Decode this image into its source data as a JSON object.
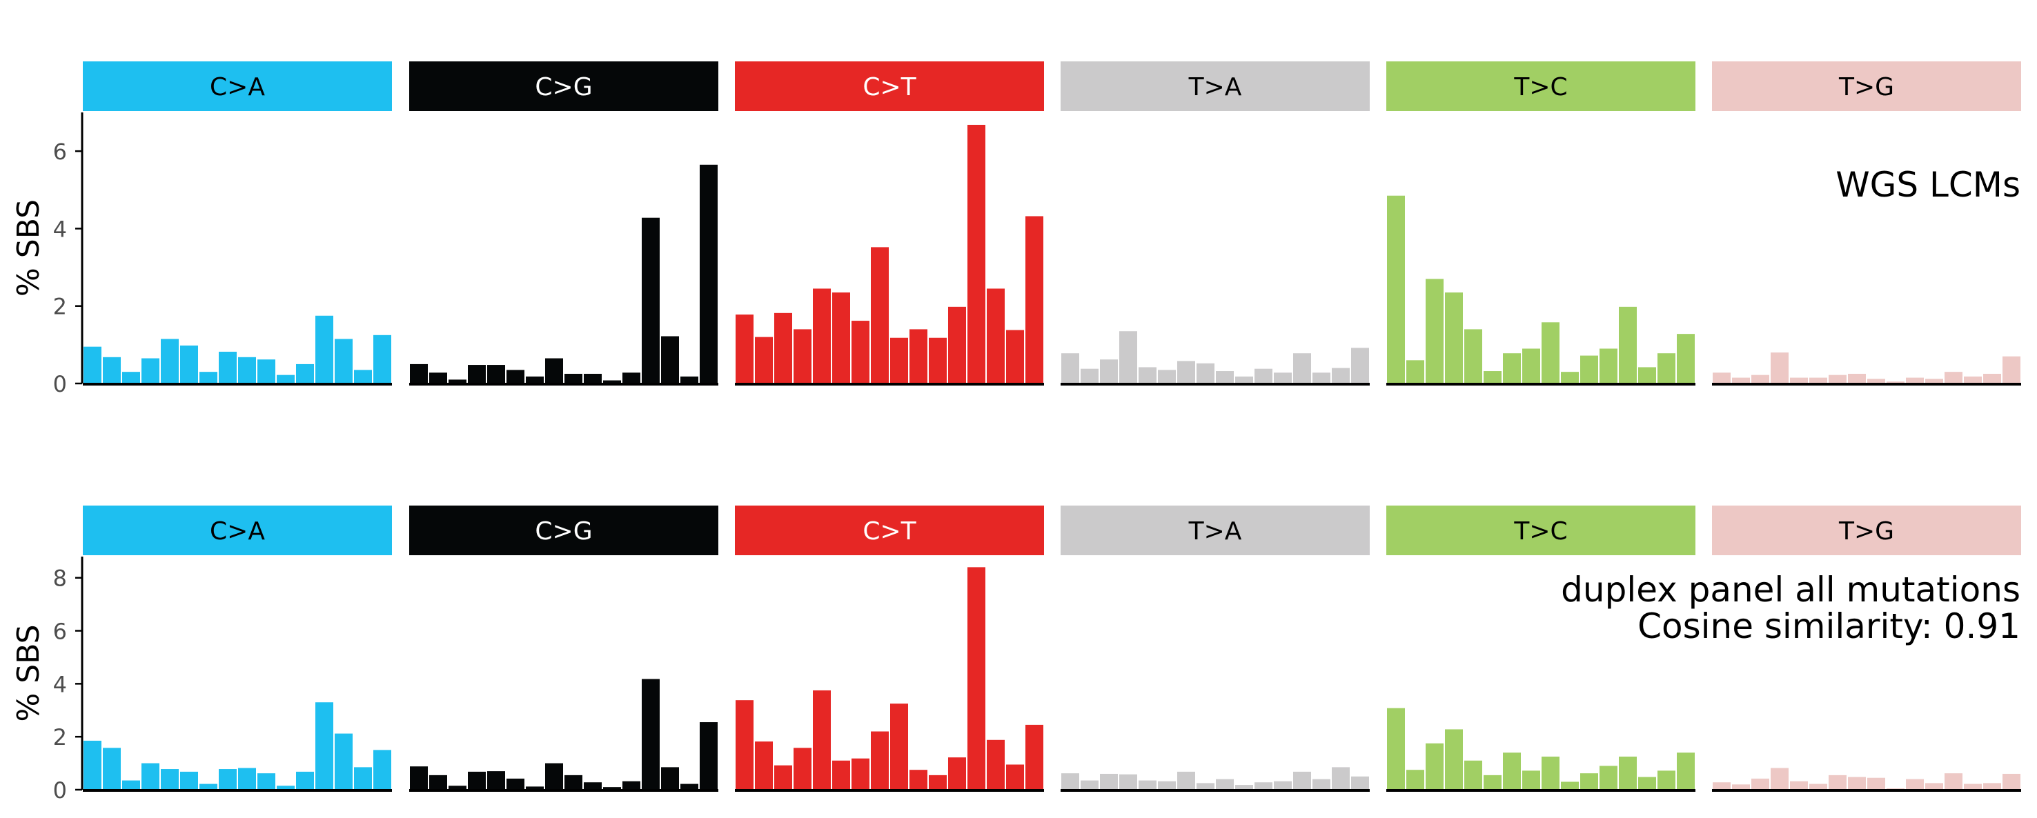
{
  "colors": {
    "C>A": "#1EBFF0",
    "C>G": "#050708",
    "C>T": "#E62725",
    "T>A": "#CBCACB",
    "T>C": "#A1CF64",
    "T>G": "#EDC8C5"
  },
  "label_colors": {
    "C>A": "#000000",
    "C>G": "#ffffff",
    "C>T": "#ffffff",
    "T>A": "#000000",
    "T>C": "#000000",
    "T>G": "#000000"
  },
  "chart_data": [
    {
      "type": "bar",
      "ylabel": "% SBS",
      "ylim": [
        0,
        7
      ],
      "yticks": [
        0,
        2,
        4,
        6
      ],
      "annotation": [
        "WGS LCMs"
      ],
      "groups": [
        "C>A",
        "C>G",
        "C>T",
        "T>A",
        "T>C",
        "T>G"
      ],
      "series": [
        {
          "group": "C>A",
          "values": [
            0.95,
            0.68,
            0.3,
            0.65,
            1.15,
            0.98,
            0.3,
            0.82,
            0.68,
            0.62,
            0.22,
            0.5,
            1.75,
            1.15,
            0.35,
            1.25
          ]
        },
        {
          "group": "C>G",
          "values": [
            0.5,
            0.28,
            0.1,
            0.48,
            0.48,
            0.35,
            0.18,
            0.65,
            0.25,
            0.25,
            0.08,
            0.28,
            4.28,
            1.22,
            0.18,
            5.65
          ]
        },
        {
          "group": "C>T",
          "values": [
            1.78,
            1.2,
            1.82,
            1.4,
            2.45,
            2.35,
            1.62,
            3.52,
            1.18,
            1.4,
            1.18,
            1.98,
            6.68,
            2.45,
            1.38,
            4.32
          ]
        },
        {
          "group": "T>A",
          "values": [
            0.78,
            0.38,
            0.62,
            1.35,
            0.42,
            0.35,
            0.58,
            0.52,
            0.32,
            0.18,
            0.38,
            0.28,
            0.78,
            0.28,
            0.4,
            0.92
          ]
        },
        {
          "group": "T>C",
          "values": [
            4.85,
            0.6,
            2.7,
            2.35,
            1.4,
            0.32,
            0.78,
            0.9,
            1.58,
            0.3,
            0.72,
            0.9,
            1.98,
            0.42,
            0.78,
            1.28
          ]
        },
        {
          "group": "T>G",
          "values": [
            0.28,
            0.15,
            0.22,
            0.8,
            0.15,
            0.15,
            0.22,
            0.25,
            0.12,
            0.05,
            0.15,
            0.12,
            0.3,
            0.18,
            0.25,
            0.7
          ]
        }
      ]
    },
    {
      "type": "bar",
      "ylabel": "% SBS",
      "ylim": [
        0,
        8.8
      ],
      "yticks": [
        0,
        2,
        4,
        6,
        8
      ],
      "annotation": [
        "duplex panel all mutations",
        "Cosine similarity: 0.91"
      ],
      "groups": [
        "C>A",
        "C>G",
        "C>T",
        "T>A",
        "T>C",
        "T>G"
      ],
      "series": [
        {
          "group": "C>A",
          "values": [
            1.85,
            1.58,
            0.35,
            1.0,
            0.78,
            0.68,
            0.22,
            0.78,
            0.82,
            0.62,
            0.15,
            0.68,
            3.3,
            2.12,
            0.85,
            1.5
          ]
        },
        {
          "group": "C>G",
          "values": [
            0.88,
            0.55,
            0.15,
            0.68,
            0.7,
            0.42,
            0.12,
            1.0,
            0.55,
            0.28,
            0.1,
            0.32,
            4.18,
            0.85,
            0.22,
            2.55
          ]
        },
        {
          "group": "C>T",
          "values": [
            3.38,
            1.82,
            0.92,
            1.58,
            3.75,
            1.1,
            1.18,
            2.2,
            3.25,
            0.75,
            0.55,
            1.22,
            8.4,
            1.88,
            0.95,
            2.45
          ]
        },
        {
          "group": "T>A",
          "values": [
            0.62,
            0.35,
            0.6,
            0.58,
            0.35,
            0.32,
            0.68,
            0.25,
            0.4,
            0.18,
            0.28,
            0.32,
            0.68,
            0.4,
            0.85,
            0.5
          ]
        },
        {
          "group": "T>C",
          "values": [
            3.08,
            0.75,
            1.75,
            2.28,
            1.1,
            0.55,
            1.4,
            0.72,
            1.25,
            0.3,
            0.62,
            0.9,
            1.25,
            0.48,
            0.72,
            1.4
          ]
        },
        {
          "group": "T>G",
          "values": [
            0.28,
            0.2,
            0.42,
            0.82,
            0.32,
            0.22,
            0.55,
            0.48,
            0.45,
            0.05,
            0.4,
            0.25,
            0.62,
            0.22,
            0.25,
            0.6
          ]
        }
      ]
    }
  ]
}
